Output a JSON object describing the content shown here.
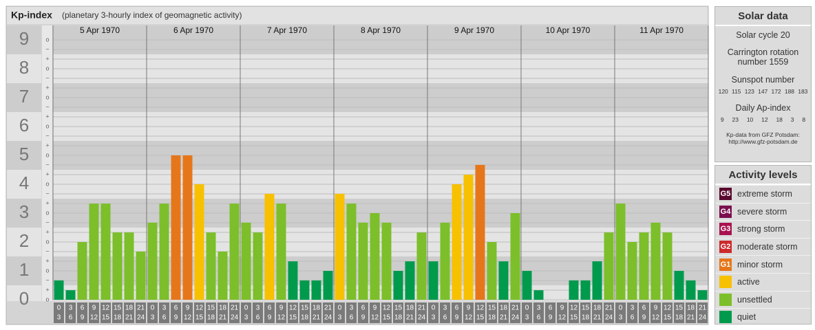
{
  "chart_data": {
    "type": "bar",
    "title": "Kp-index",
    "subtitle": "(planetary 3-hourly index of geomagnetic activity)",
    "ylim": [
      0,
      9.5
    ],
    "yticks": [
      0,
      1,
      2,
      3,
      4,
      5,
      6,
      7,
      8,
      9
    ],
    "minor_labels": [
      "−",
      "o",
      "+"
    ],
    "hours": [
      0,
      3,
      6,
      9,
      12,
      15,
      18,
      21,
      24
    ],
    "series": [
      {
        "name": "5 Apr 1970",
        "values": [
          0.67,
          0.33,
          2,
          3.33,
          3.33,
          2.33,
          2.33,
          1.67
        ],
        "colors": [
          "#009a4d",
          "#009a4d",
          "#7cbf2a",
          "#7cbf2a",
          "#7cbf2a",
          "#7cbf2a",
          "#7cbf2a",
          "#7cbf2a"
        ]
      },
      {
        "name": "6 Apr 1970",
        "values": [
          2.67,
          3.33,
          5,
          5,
          4,
          2.33,
          1.67,
          3.33
        ],
        "colors": [
          "#7cbf2a",
          "#7cbf2a",
          "#e6761a",
          "#e6761a",
          "#f7c100",
          "#7cbf2a",
          "#7cbf2a",
          "#7cbf2a"
        ]
      },
      {
        "name": "7 Apr 1970",
        "values": [
          2.67,
          2.33,
          3.67,
          3.33,
          1.33,
          0.67,
          0.67,
          1
        ],
        "colors": [
          "#7cbf2a",
          "#7cbf2a",
          "#f7c100",
          "#7cbf2a",
          "#009a4d",
          "#009a4d",
          "#009a4d",
          "#009a4d"
        ]
      },
      {
        "name": "8 Apr 1970",
        "values": [
          3.67,
          3.33,
          2.67,
          3,
          2.67,
          1,
          1.33,
          2.33
        ],
        "colors": [
          "#f7c100",
          "#7cbf2a",
          "#7cbf2a",
          "#7cbf2a",
          "#7cbf2a",
          "#009a4d",
          "#009a4d",
          "#7cbf2a"
        ]
      },
      {
        "name": "9 Apr 1970",
        "values": [
          1.33,
          2.67,
          4,
          4.33,
          4.67,
          2,
          1.33,
          3
        ],
        "colors": [
          "#009a4d",
          "#7cbf2a",
          "#f7c100",
          "#f7c100",
          "#e6761a",
          "#7cbf2a",
          "#009a4d",
          "#7cbf2a"
        ]
      },
      {
        "name": "10 Apr 1970",
        "values": [
          1,
          0.33,
          0,
          0,
          0.67,
          0.67,
          1.33,
          2.33
        ],
        "colors": [
          "#009a4d",
          "#009a4d",
          "#009a4d",
          "#009a4d",
          "#009a4d",
          "#009a4d",
          "#009a4d",
          "#7cbf2a"
        ]
      },
      {
        "name": "11 Apr 1970",
        "values": [
          3.33,
          2,
          2.33,
          2.67,
          2.33,
          1,
          0.67,
          0.33
        ],
        "colors": [
          "#7cbf2a",
          "#7cbf2a",
          "#7cbf2a",
          "#7cbf2a",
          "#7cbf2a",
          "#009a4d",
          "#009a4d",
          "#009a4d"
        ]
      }
    ]
  },
  "solar_data": {
    "title": "Solar data",
    "solar_cycle": "Solar cycle 20",
    "carrington": "Carrington rotation number 1559",
    "sunspot_title": "Sunspot number",
    "sunspots": [
      120,
      115,
      123,
      147,
      172,
      188,
      183
    ],
    "ap_title": "Daily Ap-index",
    "ap": [
      9,
      23,
      10,
      12,
      18,
      3,
      8
    ],
    "source": "Kp-data from GFZ Potsdam:",
    "source_url": "http://www.gfz-potsdam.de"
  },
  "activity_levels": {
    "title": "Activity levels",
    "items": [
      {
        "badge": "G5",
        "label": "extreme storm",
        "color": "#5a0a2e"
      },
      {
        "badge": "G4",
        "label": "severe storm",
        "color": "#7a0f4e"
      },
      {
        "badge": "G3",
        "label": "strong storm",
        "color": "#a8134f"
      },
      {
        "badge": "G2",
        "label": "moderate storm",
        "color": "#cc2a2c"
      },
      {
        "badge": "G1",
        "label": "minor storm",
        "color": "#e6761a"
      },
      {
        "label": "active",
        "color": "#f7c100"
      },
      {
        "label": "unsettled",
        "color": "#7cbf2a"
      },
      {
        "label": "quiet",
        "color": "#009a4d"
      }
    ]
  }
}
